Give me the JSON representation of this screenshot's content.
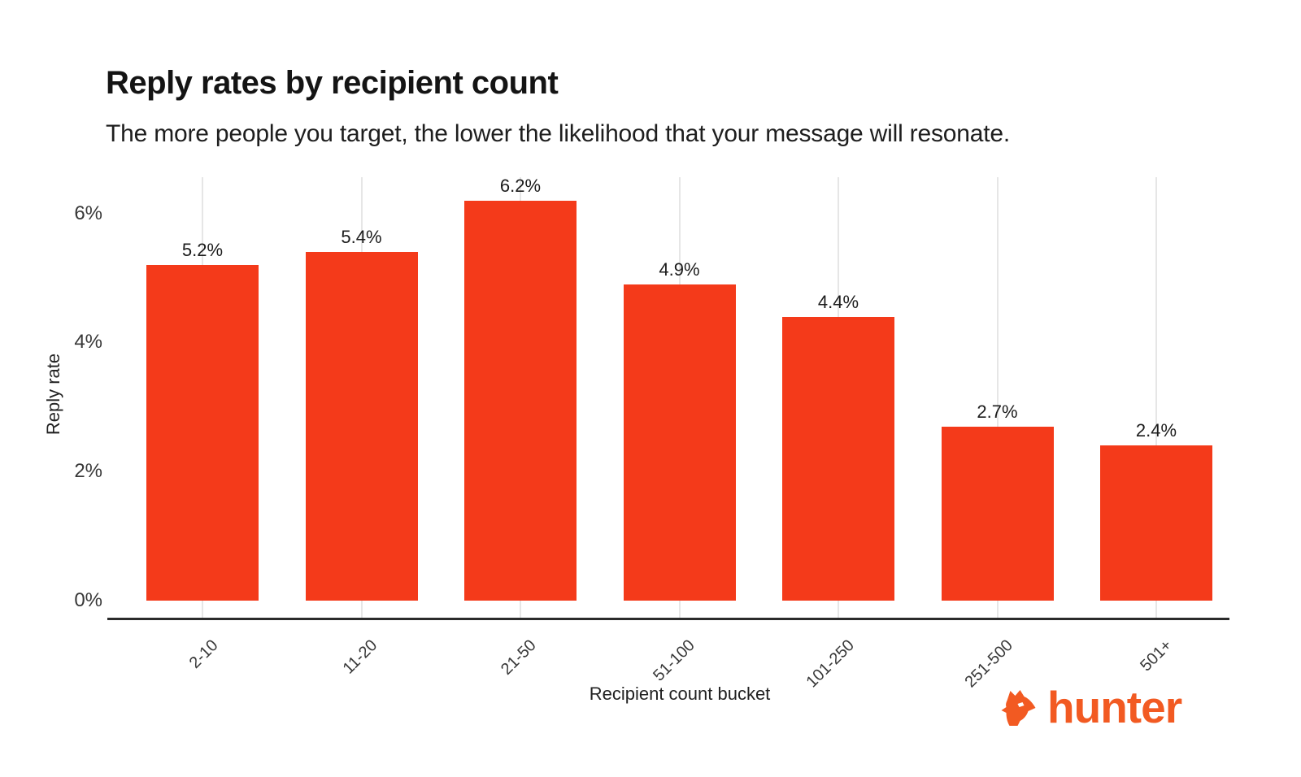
{
  "header": {
    "title": "Reply rates by recipient count",
    "subtitle": "The more people you target, the lower the likelihood that your message will resonate."
  },
  "chart_data": {
    "type": "bar",
    "title": "Reply rates by recipient count",
    "subtitle": "The more people you target, the lower the likelihood that your message will resonate.",
    "categories": [
      "2-10",
      "11-20",
      "21-50",
      "51-100",
      "101-250",
      "251-500",
      "501+"
    ],
    "values": [
      5.2,
      5.4,
      6.2,
      4.9,
      4.4,
      2.7,
      2.4
    ],
    "value_labels": [
      "5.2%",
      "5.4%",
      "6.2%",
      "4.9%",
      "4.4%",
      "2.7%",
      "2.4%"
    ],
    "xlabel": "Recipient count bucket",
    "ylabel": "Reply rate",
    "yticks": {
      "values": [
        0,
        2,
        4,
        6
      ],
      "labels": [
        "0%",
        "2%",
        "4%",
        "6%"
      ]
    },
    "ylim": [
      0,
      6.6
    ],
    "legend": "none",
    "grid": "vertical lines at each category center",
    "bar_color": "#f43a1a",
    "gridline_color": "#e6e6e6",
    "axis_color": "#2b2b2b",
    "text_color": "#1c1c1c"
  },
  "branding": {
    "logo_text": "hunter",
    "logo_color": "#f25a22",
    "logo_icon": "fox-head-icon"
  }
}
